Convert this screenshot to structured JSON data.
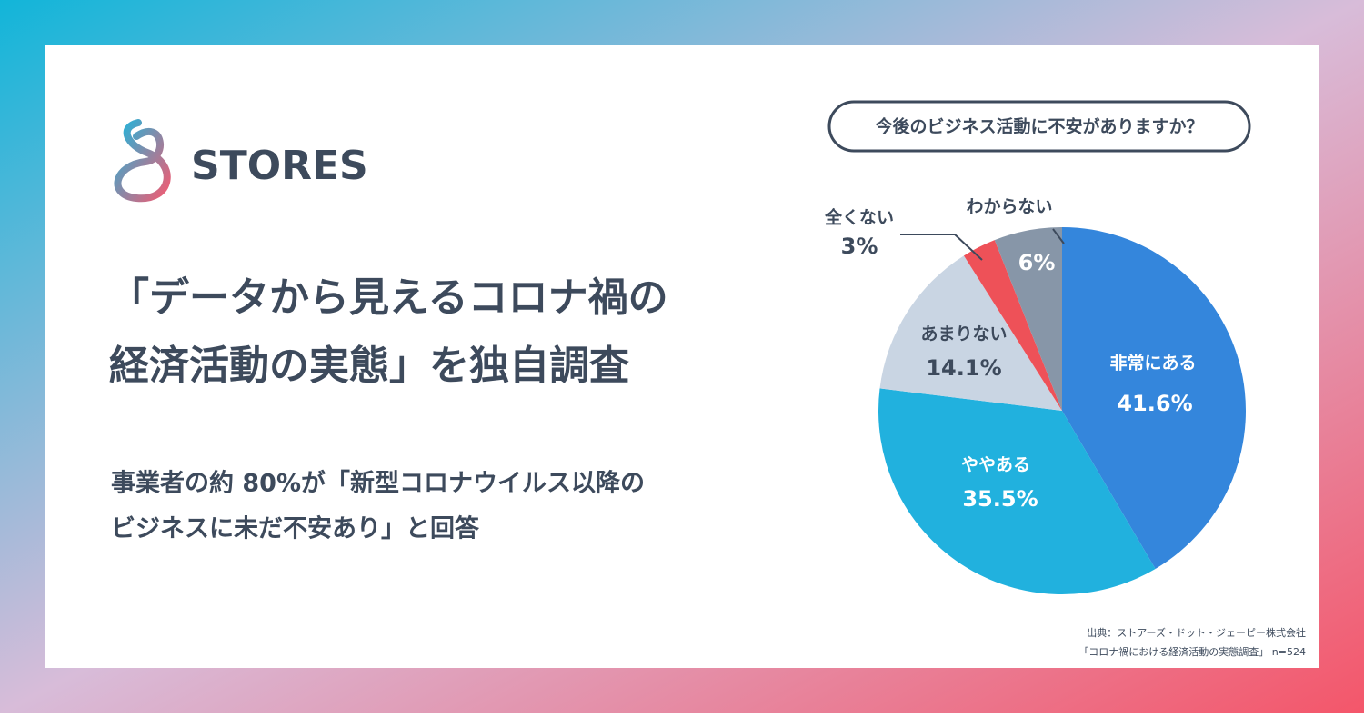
{
  "logo": "STORES",
  "headline": [
    "「データから見えるコロナ禍の",
    "経済活動の実態」を独自調査"
  ],
  "subtext": [
    "事業者の約 80%が「新型コロナウイルス以降の",
    "ビジネスに未だ不安あり」と回答"
  ],
  "chart_data": {
    "type": "pie",
    "title": "今後のビジネス活動に不安がありますか？",
    "categories": [
      "非常にある",
      "ややある",
      "あまりない",
      "全くない",
      "わからない"
    ],
    "values": [
      41.6,
      35.5,
      14.1,
      3,
      6
    ],
    "value_labels": [
      "41.6%",
      "35.5%",
      "14.1%",
      "3%",
      "6%"
    ],
    "colors": [
      "#3486dc",
      "#21b1de",
      "#c9d5e3",
      "#ee5158",
      "#8796a8"
    ],
    "source": [
      "出典：ストアーズ・ドット・ジェーピー株式会社",
      "「コロナ禍における経済活動の実態調査」 n=524"
    ]
  }
}
